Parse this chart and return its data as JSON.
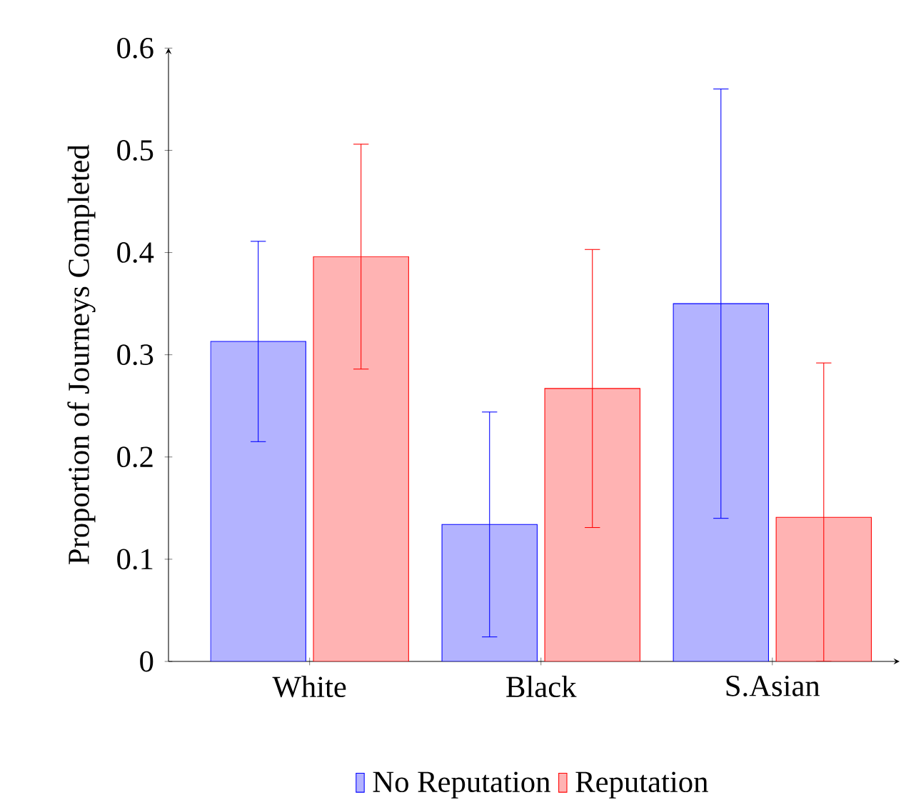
{
  "chart_data": {
    "type": "bar",
    "ylabel": "Proportion of Journeys Completed",
    "categories": [
      "White",
      "Black",
      "S.Asian"
    ],
    "series": [
      {
        "name": "No Reputation",
        "color": "#b3b3ff",
        "values": [
          0.313,
          0.134,
          0.35
        ],
        "errors": [
          0.098,
          0.11,
          0.21
        ]
      },
      {
        "name": "Reputation",
        "color": "#ffb3b3",
        "values": [
          0.396,
          0.267,
          0.141
        ],
        "errors": [
          0.11,
          0.136,
          [
            0,
            0.292
          ]
        ]
      }
    ],
    "ylim": [
      0,
      0.6
    ],
    "yticks": [
      0,
      0.1,
      0.2,
      0.3,
      0.4,
      0.5,
      0.6
    ],
    "grid": false,
    "legend": "bottom"
  }
}
